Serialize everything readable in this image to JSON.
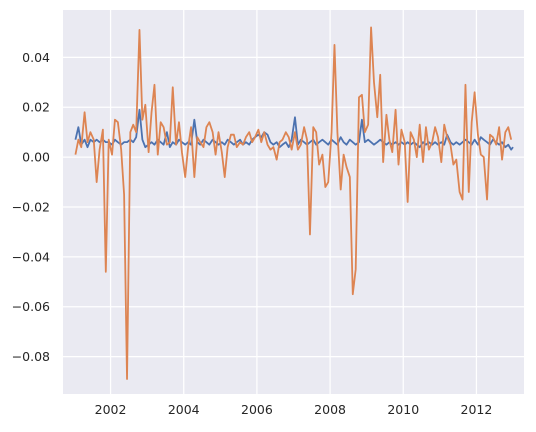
{
  "chart_data": {
    "type": "line",
    "title": "",
    "xlabel": "",
    "ylabel": "",
    "xlim": [
      2000.7,
      2013.3
    ],
    "ylim": [
      -0.095,
      0.059
    ],
    "grid": true,
    "colors": {
      "background": "#eaeaf2",
      "grid": "#ffffff",
      "text": "#262626"
    },
    "x_ticks": [
      {
        "value": 2002,
        "label": "2002"
      },
      {
        "value": 2004,
        "label": "2004"
      },
      {
        "value": 2006,
        "label": "2006"
      },
      {
        "value": 2008,
        "label": "2008"
      },
      {
        "value": 2010,
        "label": "2010"
      },
      {
        "value": 2012,
        "label": "2012"
      }
    ],
    "y_ticks": [
      {
        "value": 0.04,
        "label": "0.04"
      },
      {
        "value": 0.02,
        "label": "0.02"
      },
      {
        "value": 0.0,
        "label": "0.00"
      },
      {
        "value": -0.02,
        "label": "−0.02"
      },
      {
        "value": -0.04,
        "label": "−0.04"
      },
      {
        "value": -0.06,
        "label": "−0.06"
      },
      {
        "value": -0.08,
        "label": "−0.08"
      }
    ],
    "series": [
      {
        "color": "#4c72b0",
        "points": [
          [
            2001.04,
            0.007
          ],
          [
            2001.12,
            0.012
          ],
          [
            2001.2,
            0.005
          ],
          [
            2001.29,
            0.007
          ],
          [
            2001.37,
            0.004
          ],
          [
            2001.45,
            0.007
          ],
          [
            2001.54,
            0.006
          ],
          [
            2001.62,
            0.007
          ],
          [
            2001.7,
            0.006
          ],
          [
            2001.79,
            0.007
          ],
          [
            2001.87,
            0.006
          ],
          [
            2001.95,
            0.006
          ],
          [
            2002.04,
            0.005
          ],
          [
            2002.12,
            0.007
          ],
          [
            2002.2,
            0.006
          ],
          [
            2002.29,
            0.005
          ],
          [
            2002.37,
            0.006
          ],
          [
            2002.45,
            0.006
          ],
          [
            2002.54,
            0.007
          ],
          [
            2002.62,
            0.006
          ],
          [
            2002.7,
            0.008
          ],
          [
            2002.79,
            0.019
          ],
          [
            2002.87,
            0.007
          ],
          [
            2002.95,
            0.004
          ],
          [
            2003.04,
            0.005
          ],
          [
            2003.12,
            0.006
          ],
          [
            2003.2,
            0.005
          ],
          [
            2003.29,
            0.007
          ],
          [
            2003.37,
            0.006
          ],
          [
            2003.45,
            0.005
          ],
          [
            2003.54,
            0.01
          ],
          [
            2003.62,
            0.004
          ],
          [
            2003.7,
            0.006
          ],
          [
            2003.79,
            0.005
          ],
          [
            2003.87,
            0.007
          ],
          [
            2003.95,
            0.006
          ],
          [
            2004.04,
            0.005
          ],
          [
            2004.12,
            0.006
          ],
          [
            2004.2,
            0.005
          ],
          [
            2004.29,
            0.015
          ],
          [
            2004.37,
            0.006
          ],
          [
            2004.45,
            0.005
          ],
          [
            2004.54,
            0.007
          ],
          [
            2004.62,
            0.006
          ],
          [
            2004.7,
            0.005
          ],
          [
            2004.79,
            0.007
          ],
          [
            2004.87,
            0.006
          ],
          [
            2004.95,
            0.005
          ],
          [
            2005.04,
            0.006
          ],
          [
            2005.12,
            0.005
          ],
          [
            2005.2,
            0.007
          ],
          [
            2005.29,
            0.006
          ],
          [
            2005.37,
            0.005
          ],
          [
            2005.45,
            0.006
          ],
          [
            2005.54,
            0.007
          ],
          [
            2005.62,
            0.005
          ],
          [
            2005.7,
            0.006
          ],
          [
            2005.79,
            0.005
          ],
          [
            2005.87,
            0.007
          ],
          [
            2005.95,
            0.008
          ],
          [
            2006.04,
            0.009
          ],
          [
            2006.12,
            0.008
          ],
          [
            2006.2,
            0.01
          ],
          [
            2006.29,
            0.009
          ],
          [
            2006.37,
            0.006
          ],
          [
            2006.45,
            0.005
          ],
          [
            2006.54,
            0.006
          ],
          [
            2006.62,
            0.004
          ],
          [
            2006.7,
            0.005
          ],
          [
            2006.79,
            0.006
          ],
          [
            2006.87,
            0.004
          ],
          [
            2006.95,
            0.007
          ],
          [
            2007.04,
            0.016
          ],
          [
            2007.12,
            0.005
          ],
          [
            2007.2,
            0.007
          ],
          [
            2007.29,
            0.006
          ],
          [
            2007.37,
            0.005
          ],
          [
            2007.45,
            0.006
          ],
          [
            2007.54,
            0.007
          ],
          [
            2007.62,
            0.005
          ],
          [
            2007.7,
            0.006
          ],
          [
            2007.79,
            0.007
          ],
          [
            2007.87,
            0.006
          ],
          [
            2007.95,
            0.005
          ],
          [
            2008.04,
            0.007
          ],
          [
            2008.12,
            0.006
          ],
          [
            2008.2,
            0.005
          ],
          [
            2008.29,
            0.008
          ],
          [
            2008.37,
            0.006
          ],
          [
            2008.45,
            0.005
          ],
          [
            2008.54,
            0.007
          ],
          [
            2008.62,
            0.006
          ],
          [
            2008.7,
            0.005
          ],
          [
            2008.79,
            0.006
          ],
          [
            2008.87,
            0.015
          ],
          [
            2008.95,
            0.006
          ],
          [
            2009.04,
            0.007
          ],
          [
            2009.12,
            0.006
          ],
          [
            2009.2,
            0.005
          ],
          [
            2009.29,
            0.006
          ],
          [
            2009.37,
            0.007
          ],
          [
            2009.45,
            0.006
          ],
          [
            2009.54,
            0.005
          ],
          [
            2009.62,
            0.006
          ],
          [
            2009.7,
            0.005
          ],
          [
            2009.79,
            0.006
          ],
          [
            2009.87,
            0.005
          ],
          [
            2009.95,
            0.006
          ],
          [
            2010.04,
            0.005
          ],
          [
            2010.12,
            0.006
          ],
          [
            2010.2,
            0.005
          ],
          [
            2010.29,
            0.006
          ],
          [
            2010.37,
            0.005
          ],
          [
            2010.45,
            0.004
          ],
          [
            2010.54,
            0.006
          ],
          [
            2010.62,
            0.005
          ],
          [
            2010.7,
            0.006
          ],
          [
            2010.79,
            0.005
          ],
          [
            2010.87,
            0.006
          ],
          [
            2010.95,
            0.005
          ],
          [
            2011.04,
            0.006
          ],
          [
            2011.12,
            0.005
          ],
          [
            2011.2,
            0.009
          ],
          [
            2011.29,
            0.006
          ],
          [
            2011.37,
            0.005
          ],
          [
            2011.45,
            0.006
          ],
          [
            2011.54,
            0.005
          ],
          [
            2011.62,
            0.006
          ],
          [
            2011.7,
            0.007
          ],
          [
            2011.79,
            0.006
          ],
          [
            2011.87,
            0.005
          ],
          [
            2011.95,
            0.007
          ],
          [
            2012.04,
            0.005
          ],
          [
            2012.12,
            0.008
          ],
          [
            2012.2,
            0.007
          ],
          [
            2012.29,
            0.006
          ],
          [
            2012.37,
            0.005
          ],
          [
            2012.45,
            0.007
          ],
          [
            2012.54,
            0.006
          ],
          [
            2012.62,
            0.005
          ],
          [
            2012.7,
            0.006
          ],
          [
            2012.79,
            0.004
          ],
          [
            2012.87,
            0.005
          ],
          [
            2012.95,
            0.003
          ],
          [
            2013.0,
            0.004
          ]
        ]
      },
      {
        "color": "#dd8452",
        "points": [
          [
            2001.04,
            0.001
          ],
          [
            2001.12,
            0.007
          ],
          [
            2001.2,
            0.004
          ],
          [
            2001.29,
            0.018
          ],
          [
            2001.37,
            0.006
          ],
          [
            2001.45,
            0.01
          ],
          [
            2001.54,
            0.007
          ],
          [
            2001.62,
            -0.01
          ],
          [
            2001.7,
            0.003
          ],
          [
            2001.79,
            0.011
          ],
          [
            2001.87,
            -0.046
          ],
          [
            2001.95,
            0.007
          ],
          [
            2002.04,
            0.001
          ],
          [
            2002.12,
            0.015
          ],
          [
            2002.2,
            0.014
          ],
          [
            2002.29,
            0.003
          ],
          [
            2002.37,
            -0.015
          ],
          [
            2002.45,
            -0.089
          ],
          [
            2002.54,
            0.01
          ],
          [
            2002.62,
            0.013
          ],
          [
            2002.7,
            0.01
          ],
          [
            2002.79,
            0.051
          ],
          [
            2002.87,
            0.015
          ],
          [
            2002.95,
            0.021
          ],
          [
            2003.04,
            0.002
          ],
          [
            2003.12,
            0.018
          ],
          [
            2003.2,
            0.029
          ],
          [
            2003.29,
            0.001
          ],
          [
            2003.37,
            0.014
          ],
          [
            2003.45,
            0.012
          ],
          [
            2003.54,
            0.005
          ],
          [
            2003.62,
            0.006
          ],
          [
            2003.7,
            0.028
          ],
          [
            2003.79,
            0.005
          ],
          [
            2003.87,
            0.014
          ],
          [
            2003.95,
            0.002
          ],
          [
            2004.04,
            -0.008
          ],
          [
            2004.12,
            0.004
          ],
          [
            2004.2,
            0.012
          ],
          [
            2004.29,
            -0.008
          ],
          [
            2004.37,
            0.008
          ],
          [
            2004.45,
            0.006
          ],
          [
            2004.54,
            0.004
          ],
          [
            2004.62,
            0.012
          ],
          [
            2004.7,
            0.014
          ],
          [
            2004.79,
            0.01
          ],
          [
            2004.87,
            0.001
          ],
          [
            2004.95,
            0.01
          ],
          [
            2005.04,
            0.002
          ],
          [
            2005.12,
            -0.008
          ],
          [
            2005.2,
            0.004
          ],
          [
            2005.29,
            0.009
          ],
          [
            2005.37,
            0.009
          ],
          [
            2005.45,
            0.004
          ],
          [
            2005.54,
            0.006
          ],
          [
            2005.62,
            0.005
          ],
          [
            2005.7,
            0.008
          ],
          [
            2005.79,
            0.01
          ],
          [
            2005.87,
            0.006
          ],
          [
            2005.95,
            0.008
          ],
          [
            2006.04,
            0.011
          ],
          [
            2006.12,
            0.006
          ],
          [
            2006.2,
            0.01
          ],
          [
            2006.29,
            0.005
          ],
          [
            2006.37,
            0.003
          ],
          [
            2006.45,
            0.004
          ],
          [
            2006.54,
            -0.001
          ],
          [
            2006.62,
            0.006
          ],
          [
            2006.7,
            0.007
          ],
          [
            2006.79,
            0.01
          ],
          [
            2006.87,
            0.008
          ],
          [
            2006.95,
            0.003
          ],
          [
            2007.04,
            0.01
          ],
          [
            2007.12,
            0.003
          ],
          [
            2007.2,
            0.005
          ],
          [
            2007.29,
            0.012
          ],
          [
            2007.37,
            0.007
          ],
          [
            2007.45,
            -0.031
          ],
          [
            2007.54,
            0.012
          ],
          [
            2007.62,
            0.01
          ],
          [
            2007.7,
            -0.003
          ],
          [
            2007.79,
            0.001
          ],
          [
            2007.87,
            -0.012
          ],
          [
            2007.95,
            -0.01
          ],
          [
            2008.04,
            0.01
          ],
          [
            2008.12,
            0.045
          ],
          [
            2008.2,
            0.01
          ],
          [
            2008.29,
            -0.013
          ],
          [
            2008.37,
            0.001
          ],
          [
            2008.45,
            -0.004
          ],
          [
            2008.54,
            -0.008
          ],
          [
            2008.62,
            -0.055
          ],
          [
            2008.7,
            -0.045
          ],
          [
            2008.79,
            0.024
          ],
          [
            2008.87,
            0.025
          ],
          [
            2008.95,
            0.01
          ],
          [
            2009.04,
            0.013
          ],
          [
            2009.12,
            0.052
          ],
          [
            2009.2,
            0.03
          ],
          [
            2009.29,
            0.016
          ],
          [
            2009.37,
            0.033
          ],
          [
            2009.45,
            -0.002
          ],
          [
            2009.54,
            0.017
          ],
          [
            2009.62,
            0.007
          ],
          [
            2009.7,
            0.002
          ],
          [
            2009.79,
            0.019
          ],
          [
            2009.87,
            -0.003
          ],
          [
            2009.95,
            0.011
          ],
          [
            2010.04,
            0.006
          ],
          [
            2010.12,
            -0.018
          ],
          [
            2010.2,
            0.01
          ],
          [
            2010.29,
            0.007
          ],
          [
            2010.37,
            0.0
          ],
          [
            2010.45,
            0.013
          ],
          [
            2010.54,
            -0.002
          ],
          [
            2010.62,
            0.012
          ],
          [
            2010.7,
            0.003
          ],
          [
            2010.79,
            0.006
          ],
          [
            2010.87,
            0.012
          ],
          [
            2010.95,
            0.008
          ],
          [
            2011.04,
            -0.002
          ],
          [
            2011.12,
            0.013
          ],
          [
            2011.2,
            0.008
          ],
          [
            2011.29,
            0.005
          ],
          [
            2011.37,
            -0.003
          ],
          [
            2011.45,
            -0.001
          ],
          [
            2011.54,
            -0.014
          ],
          [
            2011.62,
            -0.017
          ],
          [
            2011.7,
            0.029
          ],
          [
            2011.79,
            -0.014
          ],
          [
            2011.87,
            0.014
          ],
          [
            2011.95,
            0.026
          ],
          [
            2012.04,
            0.009
          ],
          [
            2012.12,
            0.001
          ],
          [
            2012.2,
            0.0
          ],
          [
            2012.29,
            -0.017
          ],
          [
            2012.37,
            0.009
          ],
          [
            2012.45,
            0.008
          ],
          [
            2012.54,
            0.005
          ],
          [
            2012.62,
            0.012
          ],
          [
            2012.7,
            -0.001
          ],
          [
            2012.79,
            0.01
          ],
          [
            2012.87,
            0.012
          ],
          [
            2012.95,
            0.007
          ]
        ]
      }
    ]
  }
}
